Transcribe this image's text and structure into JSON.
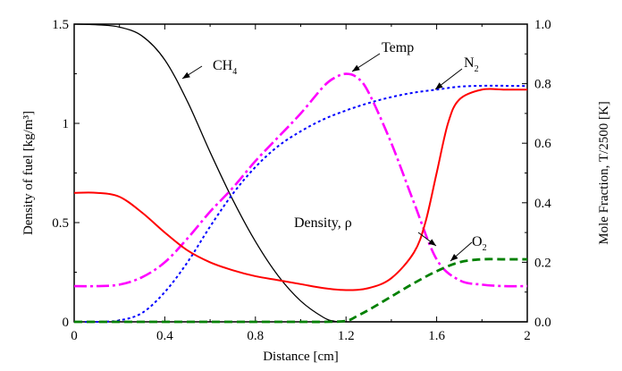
{
  "chart_data": {
    "type": "line",
    "xlabel": "Distance [cm]",
    "ylabel_left": "Density of fuel  [kg/m³]",
    "ylabel_right": "Mole Fraction, T/2500 [K]",
    "xlim": [
      0,
      2
    ],
    "ylim_left": [
      0,
      1.5
    ],
    "ylim_right": [
      0,
      1.0
    ],
    "x_ticks": [
      "0",
      "0.4",
      "0.8",
      "1.2",
      "1.6",
      "2"
    ],
    "y_left_ticks": [
      "0",
      "0.5",
      "1",
      "1.5"
    ],
    "y_right_ticks": [
      "0.0",
      "0.2",
      "0.4",
      "0.6",
      "0.8",
      "1.0"
    ],
    "grid": false,
    "legend": "none",
    "series": [
      {
        "id": "ch4",
        "axis": "right",
        "color": "#000000",
        "style": "solid",
        "x": [
          0,
          0.1,
          0.2,
          0.3,
          0.4,
          0.5,
          0.6,
          0.7,
          0.8,
          0.9,
          1.0,
          1.1,
          1.15,
          1.2,
          1.4,
          1.6,
          1.8,
          2.0
        ],
        "y": [
          1.0,
          0.998,
          0.99,
          0.96,
          0.88,
          0.74,
          0.57,
          0.41,
          0.27,
          0.155,
          0.07,
          0.015,
          0.002,
          0.0,
          0.0,
          0.0,
          0.0,
          0.0
        ]
      },
      {
        "id": "temp",
        "axis": "right",
        "color": "#ff00ff",
        "style": "dash-dot",
        "x": [
          0,
          0.1,
          0.2,
          0.3,
          0.4,
          0.5,
          0.6,
          0.7,
          0.8,
          0.9,
          1.0,
          1.1,
          1.15,
          1.2,
          1.25,
          1.3,
          1.4,
          1.5,
          1.6,
          1.7,
          1.8,
          1.9,
          2.0
        ],
        "y": [
          0.12,
          0.12,
          0.125,
          0.15,
          0.2,
          0.28,
          0.37,
          0.45,
          0.54,
          0.62,
          0.7,
          0.79,
          0.82,
          0.833,
          0.82,
          0.77,
          0.6,
          0.4,
          0.21,
          0.14,
          0.125,
          0.12,
          0.12
        ]
      },
      {
        "id": "n2",
        "axis": "right",
        "color": "#0000ff",
        "style": "dotted",
        "x": [
          0,
          0.1,
          0.2,
          0.3,
          0.4,
          0.5,
          0.6,
          0.7,
          0.8,
          0.9,
          1.0,
          1.1,
          1.2,
          1.3,
          1.4,
          1.5,
          1.6,
          1.7,
          1.8,
          1.9,
          2.0
        ],
        "y": [
          0.0,
          0.0,
          0.005,
          0.03,
          0.1,
          0.2,
          0.32,
          0.43,
          0.52,
          0.59,
          0.64,
          0.68,
          0.71,
          0.735,
          0.755,
          0.77,
          0.78,
          0.79,
          0.793,
          0.793,
          0.792
        ]
      },
      {
        "id": "density",
        "axis": "left",
        "color": "#ff0000",
        "style": "solid",
        "x": [
          0,
          0.1,
          0.2,
          0.3,
          0.4,
          0.5,
          0.6,
          0.7,
          0.8,
          0.9,
          1.0,
          1.1,
          1.2,
          1.3,
          1.4,
          1.5,
          1.55,
          1.6,
          1.65,
          1.7,
          1.8,
          1.9,
          2.0
        ],
        "y": [
          0.65,
          0.65,
          0.63,
          0.55,
          0.45,
          0.36,
          0.3,
          0.26,
          0.23,
          0.21,
          0.19,
          0.17,
          0.16,
          0.17,
          0.22,
          0.35,
          0.5,
          0.75,
          1.0,
          1.12,
          1.17,
          1.17,
          1.17
        ]
      },
      {
        "id": "o2",
        "axis": "right",
        "color": "#008000",
        "style": "dashed",
        "x": [
          0,
          0.2,
          0.4,
          0.6,
          0.8,
          1.0,
          1.1,
          1.2,
          1.25,
          1.3,
          1.4,
          1.5,
          1.6,
          1.7,
          1.8,
          1.9,
          2.0
        ],
        "y": [
          0.0,
          0.0,
          0.0,
          0.0,
          0.0,
          0.0,
          0.0,
          0.003,
          0.02,
          0.04,
          0.085,
          0.13,
          0.17,
          0.2,
          0.21,
          0.21,
          0.21
        ]
      }
    ],
    "annotations": [
      {
        "id": "ch4",
        "main": "CH",
        "sub": "4"
      },
      {
        "id": "temp",
        "main": "Temp",
        "sub": ""
      },
      {
        "id": "n2",
        "main": "N",
        "sub": "2"
      },
      {
        "id": "density",
        "main": "Density, ρ",
        "sub": ""
      },
      {
        "id": "o2",
        "main": "O",
        "sub": "2"
      }
    ]
  }
}
